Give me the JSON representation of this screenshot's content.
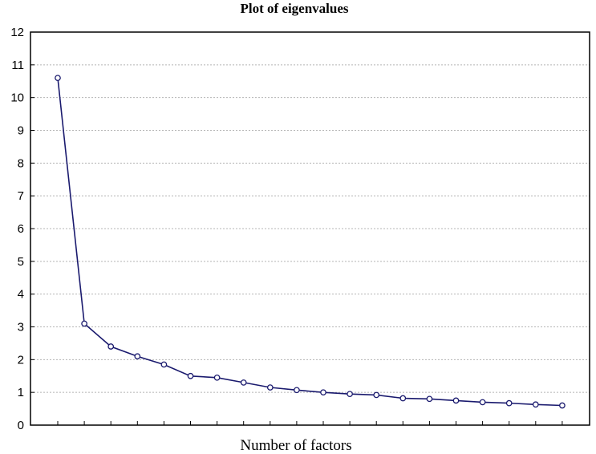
{
  "chart_data": {
    "type": "line",
    "title": "Plot of eigenvalues",
    "xlabel": "Number of factors",
    "ylabel": "",
    "ylim": [
      0,
      12
    ],
    "yticks": [
      "0",
      "1",
      "2",
      "3",
      "4",
      "5",
      "6",
      "7",
      "8",
      "9",
      "10",
      "11",
      "12"
    ],
    "x": [
      1,
      2,
      3,
      4,
      5,
      6,
      7,
      8,
      9,
      10,
      11,
      12,
      13,
      14,
      15,
      16,
      17,
      18,
      19,
      20
    ],
    "series": [
      {
        "values": [
          10.6,
          3.1,
          2.4,
          2.1,
          1.85,
          1.5,
          1.45,
          1.3,
          1.15,
          1.07,
          1.0,
          0.95,
          0.92,
          0.82,
          0.8,
          0.75,
          0.7,
          0.67,
          0.63,
          0.6
        ]
      }
    ],
    "grid": true,
    "line_color": "#1a1a6e",
    "grid_color": "#b5b5b5"
  }
}
